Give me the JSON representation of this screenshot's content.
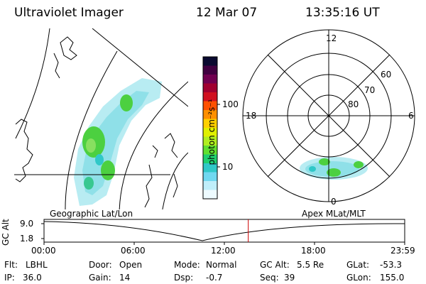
{
  "header": {
    "instrument": "Ultraviolet Imager",
    "date": "12 Mar 07",
    "time": "13:35:16 UT"
  },
  "colorbar": {
    "unit_label": "photon cm⁻²s⁻¹",
    "ticks": [
      "100",
      "10"
    ],
    "colors": [
      "#0a0a30",
      "#400040",
      "#700050",
      "#a00030",
      "#d01020",
      "#ff5000",
      "#ff9000",
      "#ffd000",
      "#e0f000",
      "#b0ee20",
      "#60e030",
      "#20d070",
      "#30c8c8",
      "#70d8f0",
      "#bfeefa",
      "#eefbff"
    ]
  },
  "left_panel": {
    "label": "Geographic Lat/Lon"
  },
  "right_panel": {
    "label": "Apex MLat/MLT",
    "lat_labels": [
      "60",
      "70",
      "80"
    ],
    "mlt_labels": {
      "top": "12",
      "left": "18",
      "right": "6",
      "bottom": "0"
    }
  },
  "timeline": {
    "y_axis_label": "GC Alt",
    "y_ticks": [
      "9.0",
      "1.8"
    ],
    "x_ticks": [
      "00:00",
      "06:00",
      "12:00",
      "18:00",
      "23:59"
    ],
    "current_time_fraction": 0.5663
  },
  "info": {
    "flt_label": "Flt:",
    "flt_value": "LBHL",
    "door_label": "Door:",
    "door_value": "Open",
    "mode_label": "Mode:",
    "mode_value": "Normal",
    "gcalt_label": "GC Alt:",
    "gcalt_value": "5.5 Re",
    "glat_label": "GLat:",
    "glat_value": "-53.3",
    "ip_label": "IP:",
    "ip_value": "36.0",
    "gain_label": "Gain:",
    "gain_value": "14",
    "dsp_label": "Dsp:",
    "dsp_value": "-0.7",
    "seq_label": "Seq:",
    "seq_value": "39",
    "glon_label": "GLon:",
    "glon_value": "155.0"
  },
  "colors": {
    "marker": "#cc0000",
    "aurora_green": "#4cd040",
    "aurora_cyan": "#8fe0e8"
  }
}
